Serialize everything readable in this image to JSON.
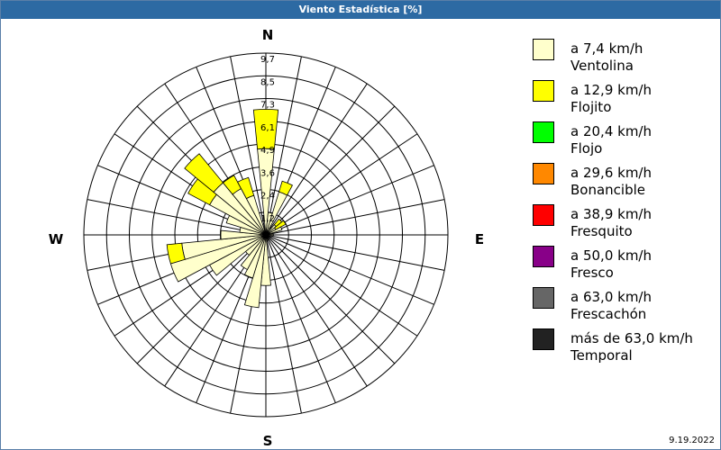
{
  "window": {
    "title": "Viento Estadística [%]"
  },
  "footer": {
    "date": "9.19.2022"
  },
  "chart_data": {
    "type": "wind-rose",
    "title": "Viento Estadística [%]",
    "directions": [
      "N",
      "NbE",
      "NNE",
      "NEbN",
      "NE",
      "NEbE",
      "ENE",
      "EbN",
      "E",
      "EbS",
      "ESE",
      "SEbE",
      "SE",
      "SEbS",
      "SSE",
      "SbE",
      "S",
      "SbW",
      "SSW",
      "SWbS",
      "SW",
      "SWbW",
      "WSW",
      "WbS",
      "W",
      "WbN",
      "WNW",
      "NWbW",
      "NW",
      "NWbN",
      "NNW",
      "NbW"
    ],
    "cardinal_labels": {
      "N": "N",
      "E": "E",
      "S": "S",
      "W": "W"
    },
    "radial_ticks": [
      "1,2",
      "2,4",
      "3,6",
      "4,9",
      "6,1",
      "7,3",
      "8,5",
      "9,7"
    ],
    "radial_max": 9.7,
    "series": [
      {
        "name": "a 7,4 km/h",
        "values": [
          4.6,
          1.2,
          2.4,
          0.4,
          0.7,
          0.6,
          0.9,
          0.3,
          0.4,
          0.0,
          0.0,
          0.0,
          0.0,
          0.1,
          0.3,
          0.3,
          2.7,
          3.9,
          2.4,
          2.1,
          1.4,
          3.4,
          5.3,
          4.5,
          2.4,
          1.4,
          2.2,
          3.4,
          3.6,
          2.8,
          2.2,
          0.2
        ]
      },
      {
        "name": "a 12,9 km/h",
        "values": [
          2.1,
          0.0,
          0.6,
          0.0,
          0.4,
          0.6,
          0.0,
          0.0,
          0.0,
          0.0,
          0.0,
          0.0,
          0.0,
          0.0,
          0.0,
          0.0,
          0.0,
          0.0,
          0.0,
          0.0,
          0.0,
          0.0,
          0.0,
          0.8,
          0.0,
          0.0,
          0.0,
          1.3,
          2.0,
          0.8,
          1.0,
          0.0
        ]
      }
    ],
    "legend": [
      {
        "label": "a 7,4 km/h",
        "sublabel": "Ventolina",
        "color": "#ffffcc"
      },
      {
        "label": "a 12,9 km/h",
        "sublabel": "Flojito",
        "color": "#ffff00"
      },
      {
        "label": "a 20,4 km/h",
        "sublabel": "Flojo",
        "color": "#00ff00"
      },
      {
        "label": "a 29,6 km/h",
        "sublabel": "Bonancible",
        "color": "#ff8800"
      },
      {
        "label": "a 38,9 km/h",
        "sublabel": "Fresquito",
        "color": "#ff0000"
      },
      {
        "label": "a 50,0 km/h",
        "sublabel": "Fresco",
        "color": "#880088"
      },
      {
        "label": "a 63,0 km/h",
        "sublabel": "Frescachón",
        "color": "#666666"
      },
      {
        "label": "más de 63,0 km/h",
        "sublabel": "Temporal",
        "color": "#222222"
      }
    ],
    "legend_position": "right"
  }
}
